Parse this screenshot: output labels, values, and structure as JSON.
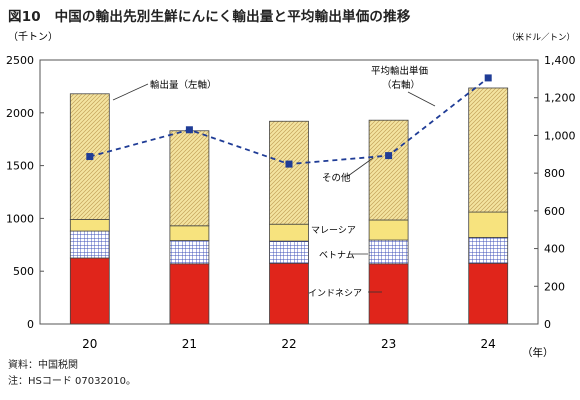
{
  "figure": {
    "title": "図10　中国の輸出先別生鮮にんにく輸出量と平均輸出単価の推移",
    "source_note": "資料：中国税関",
    "hs_note": "注：HSコード 07032010。"
  },
  "chart_data": {
    "type": "bar",
    "stacked": true,
    "categories": [
      "20",
      "21",
      "22",
      "23",
      "24"
    ],
    "xlabel": "（年）",
    "y_left": {
      "unit_label": "（千トン）",
      "lim": [
        0,
        2500
      ],
      "ticks": [
        "0",
        "500",
        "1000",
        "1500",
        "2000",
        "2500"
      ]
    },
    "y_right": {
      "unit_label": "（米ドル／トン）",
      "lim": [
        0,
        1400
      ],
      "ticks": [
        "0",
        "200",
        "400",
        "600",
        "800",
        "1,000",
        "1,200",
        "1,400"
      ]
    },
    "series": [
      {
        "name": "インドネシア",
        "axis": "left",
        "color": "#e0251b",
        "pattern": "solid",
        "values": [
          625,
          570,
          575,
          570,
          575
        ]
      },
      {
        "name": "ベトナム",
        "axis": "left",
        "color": "#2e3fa8",
        "pattern": "grid",
        "values": [
          255,
          220,
          210,
          225,
          245
        ]
      },
      {
        "name": "マレーシア",
        "axis": "left",
        "color": "#f7e37e",
        "pattern": "solid",
        "values": [
          110,
          140,
          160,
          190,
          240
        ]
      },
      {
        "name": "その他",
        "axis": "left",
        "color": "#f4e4a0",
        "pattern": "hatch",
        "values": [
          1190,
          900,
          975,
          945,
          1175
        ]
      }
    ],
    "line": {
      "name": "平均輸出単価（右軸）",
      "axis": "right",
      "color": "#1f3c96",
      "values": [
        888,
        1030,
        848,
        893,
        1305
      ]
    },
    "annotations": {
      "volume_label": "輸出量（左軸）",
      "price_label": [
        "平均輸出単価",
        "（右軸）"
      ],
      "other_label": "その他",
      "malaysia_label": "マレーシア",
      "vietnam_label": "ベトナム",
      "indonesia_label": "インドネシア"
    },
    "grid": false,
    "legend": "none"
  }
}
